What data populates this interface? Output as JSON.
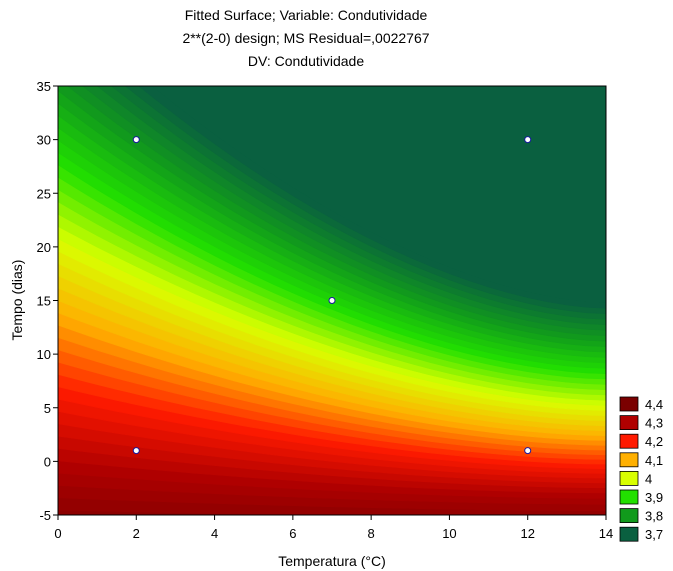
{
  "chart_data": {
    "type": "contour",
    "title_lines": [
      "Fitted Surface; Variable: Condutividade",
      "2**(2-0) design; MS Residual=,0022767",
      "DV: Condutividade"
    ],
    "xlabel": "Temperatura (°C)",
    "ylabel": "Tempo (dias)",
    "xlim": [
      0,
      14
    ],
    "ylim": [
      -5,
      35
    ],
    "x_ticks": [
      "0",
      "2",
      "4",
      "6",
      "8",
      "10",
      "12",
      "14"
    ],
    "y_ticks": [
      "-5",
      "0",
      "5",
      "10",
      "15",
      "20",
      "25",
      "30",
      "35"
    ],
    "legend_position": "bottom-right",
    "legend": [
      {
        "label": "4,4",
        "color": "#7a0000"
      },
      {
        "label": "4,3",
        "color": "#b00000"
      },
      {
        "label": "4,2",
        "color": "#ff1a00"
      },
      {
        "label": "4,1",
        "color": "#ffb000"
      },
      {
        "label": "4",
        "color": "#d8ff00"
      },
      {
        "label": "3,9",
        "color": "#22e000"
      },
      {
        "label": "3,8",
        "color": "#119a1c"
      },
      {
        "label": "3,7",
        "color": "#0a6040"
      }
    ],
    "design_points": [
      {
        "x": 2,
        "y": 30
      },
      {
        "x": 12,
        "y": 30
      },
      {
        "x": 7,
        "y": 15
      },
      {
        "x": 2,
        "y": 1
      },
      {
        "x": 12,
        "y": 1
      }
    ]
  }
}
